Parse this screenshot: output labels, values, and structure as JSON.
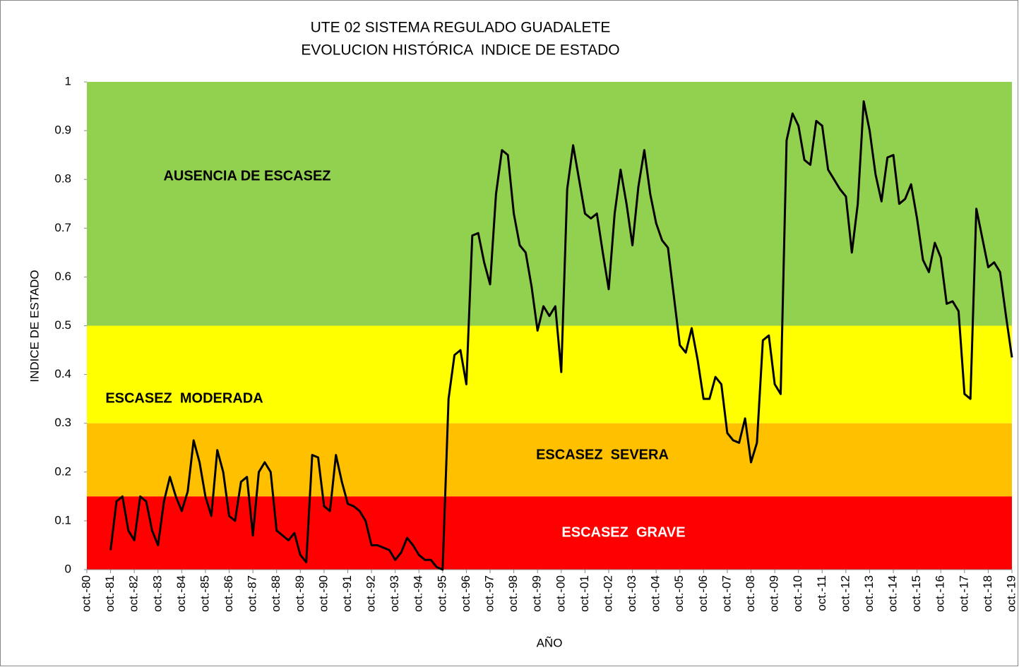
{
  "chart_data": {
    "type": "line",
    "title": "UTE 02 SISTEMA REGULADO GUADALETE",
    "subtitle": "EVOLUCION HISTÓRICA  INDICE DE ESTADO",
    "x_label": "AÑO",
    "y_label": "INDICE DE ESTADO",
    "ylim": [
      0,
      1
    ],
    "yticks": [
      0,
      0.1,
      0.2,
      0.3,
      0.4,
      0.5,
      0.6,
      0.7,
      0.8,
      0.9,
      1
    ],
    "grid": false,
    "bands": [
      {
        "label": "AUSENCIA DE ESCASEZ",
        "from": 0.5,
        "to": 1,
        "color": "#92d050",
        "label_color": "#000000"
      },
      {
        "label": "ESCASEZ  MODERADA",
        "from": 0.3,
        "to": 0.5,
        "color": "#ffff00",
        "label_color": "#000000"
      },
      {
        "label": "ESCASEZ  SEVERA",
        "from": 0.15,
        "to": 0.3,
        "color": "#ffc000",
        "label_color": "#000000"
      },
      {
        "label": "ESCASEZ  GRAVE",
        "from": 0,
        "to": 0.15,
        "color": "#ff0000",
        "label_color": "#ffffff"
      }
    ],
    "categories": [
      "oct.-80",
      null,
      null,
      null,
      "oct.-81",
      null,
      null,
      null,
      "oct.-82",
      null,
      null,
      null,
      "oct.-83",
      null,
      null,
      null,
      "oct.-84",
      null,
      null,
      null,
      "oct.-85",
      null,
      null,
      null,
      "oct.-86",
      null,
      null,
      null,
      "oct.-87",
      null,
      null,
      null,
      "oct.-88",
      null,
      null,
      null,
      "oct.-89",
      null,
      null,
      null,
      "oct.-90",
      null,
      null,
      null,
      "oct.-91",
      null,
      null,
      null,
      "oct.-92",
      null,
      null,
      null,
      "oct.-93",
      null,
      null,
      null,
      "oct.-94",
      null,
      null,
      null,
      "oct.-95",
      null,
      null,
      null,
      "oct.-96",
      null,
      null,
      null,
      "oct.-97",
      null,
      null,
      null,
      "oct.-98",
      null,
      null,
      null,
      "oct.-99",
      null,
      null,
      null,
      "oct.-00",
      null,
      null,
      null,
      "oct.-01",
      null,
      null,
      null,
      "oct.-02",
      null,
      null,
      null,
      "oct.-03",
      null,
      null,
      null,
      "oct.-04",
      null,
      null,
      null,
      "oct.-05",
      null,
      null,
      null,
      "oct.-06",
      null,
      null,
      null,
      "oct.-07",
      null,
      null,
      null,
      "oct.-08",
      null,
      null,
      null,
      "oct.-09",
      null,
      null,
      null,
      "oct.-10",
      null,
      null,
      null,
      "oct.-11",
      null,
      null,
      null,
      "oct.-12",
      null,
      null,
      null,
      "oct.-13",
      null,
      null,
      null,
      "oct.-14",
      null,
      null,
      null,
      "oct.-15",
      null,
      null,
      null,
      "oct.-16",
      null,
      null,
      null,
      "oct.-17",
      null,
      null,
      null,
      "oct.-18",
      null,
      null,
      null,
      "oct.-19"
    ],
    "series": [
      {
        "name": "INDICE DE ESTADO",
        "color": "#000000",
        "values": [
          null,
          null,
          null,
          null,
          0.04,
          0.14,
          0.15,
          0.08,
          0.06,
          0.15,
          0.14,
          0.08,
          0.05,
          0.14,
          0.19,
          0.15,
          0.12,
          0.16,
          0.265,
          0.22,
          0.15,
          0.11,
          0.245,
          0.2,
          0.11,
          0.1,
          0.18,
          0.19,
          0.07,
          0.2,
          0.22,
          0.2,
          0.08,
          0.07,
          0.06,
          0.075,
          0.03,
          0.015,
          0.235,
          0.23,
          0.13,
          0.12,
          0.235,
          0.18,
          0.135,
          0.13,
          0.12,
          0.1,
          0.05,
          0.05,
          0.045,
          0.04,
          0.02,
          0.035,
          0.065,
          0.05,
          0.03,
          0.02,
          0.02,
          0.005,
          0.0,
          0.35,
          0.44,
          0.45,
          0.38,
          0.685,
          0.69,
          0.63,
          0.585,
          0.77,
          0.86,
          0.85,
          0.73,
          0.665,
          0.65,
          0.58,
          0.49,
          0.54,
          0.52,
          0.54,
          0.405,
          0.78,
          0.87,
          0.8,
          0.73,
          0.72,
          0.73,
          0.65,
          0.575,
          0.73,
          0.82,
          0.75,
          0.665,
          0.785,
          0.86,
          0.77,
          0.71,
          0.675,
          0.66,
          0.56,
          0.46,
          0.445,
          0.495,
          0.43,
          0.35,
          0.35,
          0.395,
          0.38,
          0.28,
          0.265,
          0.26,
          0.31,
          0.22,
          0.26,
          0.47,
          0.48,
          0.38,
          0.36,
          0.88,
          0.935,
          0.91,
          0.84,
          0.83,
          0.92,
          0.91,
          0.82,
          0.8,
          0.78,
          0.765,
          0.65,
          0.75,
          0.96,
          0.9,
          0.81,
          0.755,
          0.845,
          0.85,
          0.75,
          0.76,
          0.79,
          0.72,
          0.635,
          0.61,
          0.67,
          0.64,
          0.545,
          0.55,
          0.53,
          0.36,
          0.35,
          0.74,
          0.68,
          0.62,
          0.63,
          0.61,
          0.52,
          0.435
        ]
      }
    ]
  }
}
